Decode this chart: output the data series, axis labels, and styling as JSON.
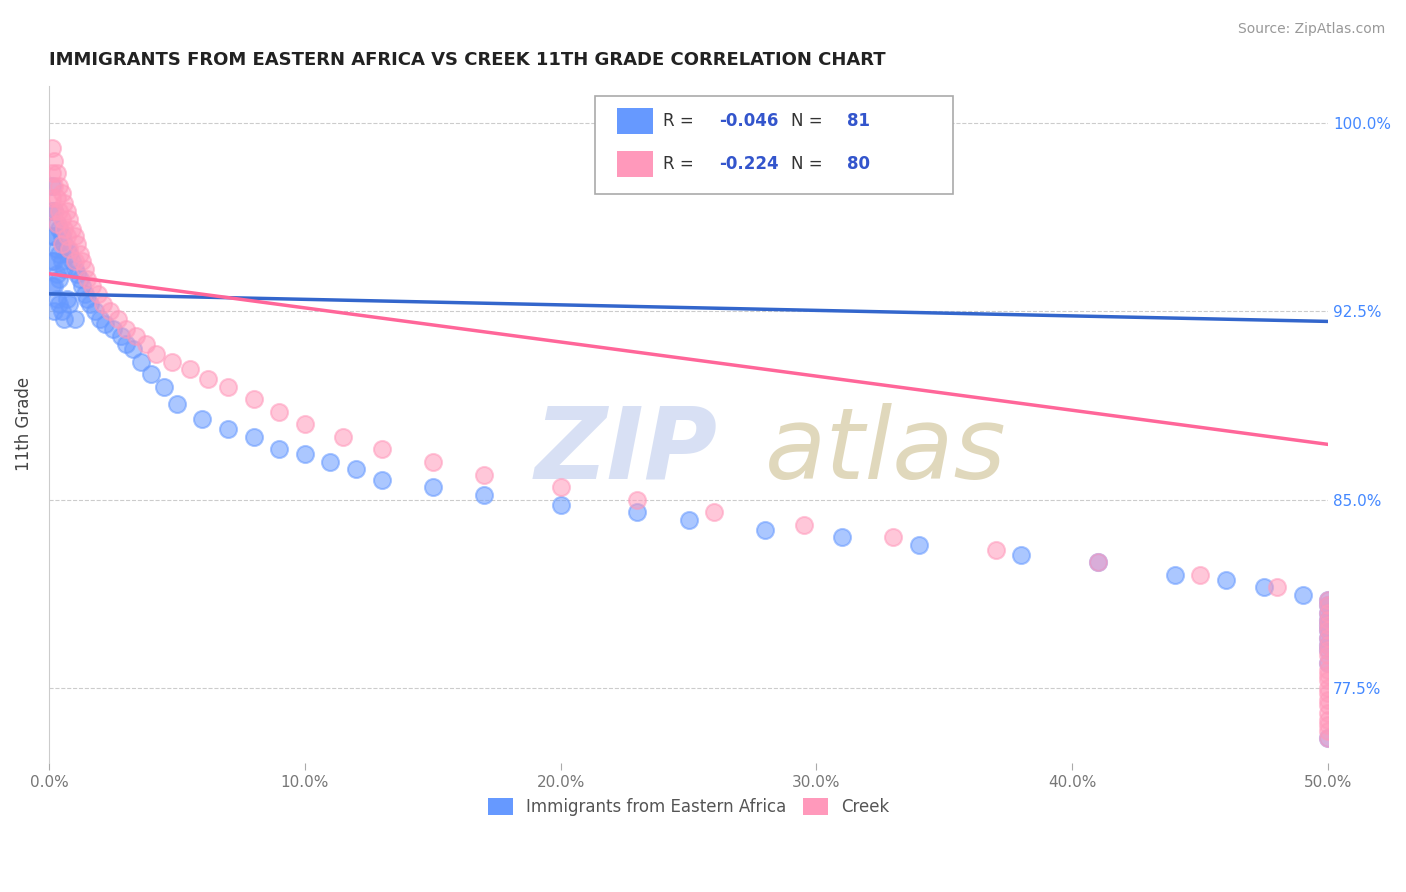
{
  "title": "IMMIGRANTS FROM EASTERN AFRICA VS CREEK 11TH GRADE CORRELATION CHART",
  "source_text": "Source: ZipAtlas.com",
  "ylabel": "11th Grade",
  "xlim": [
    0.0,
    0.5
  ],
  "ylim": [
    0.745,
    1.015
  ],
  "xtick_labels": [
    "0.0%",
    "",
    "",
    "",
    "",
    "10.0%",
    "",
    "",
    "",
    "",
    "20.0%",
    "",
    "",
    "",
    "",
    "30.0%",
    "",
    "",
    "",
    "",
    "40.0%",
    "",
    "",
    "",
    "",
    "50.0%"
  ],
  "xtick_values": [
    0.0,
    0.02,
    0.04,
    0.06,
    0.08,
    0.1,
    0.12,
    0.14,
    0.16,
    0.18,
    0.2,
    0.22,
    0.24,
    0.26,
    0.28,
    0.3,
    0.32,
    0.34,
    0.36,
    0.38,
    0.4,
    0.42,
    0.44,
    0.46,
    0.48,
    0.5
  ],
  "ytick_labels": [
    "77.5%",
    "85.0%",
    "92.5%",
    "100.0%"
  ],
  "ytick_values": [
    0.775,
    0.85,
    0.925,
    1.0
  ],
  "blue_color": "#6699ff",
  "pink_color": "#ff99bb",
  "blue_line_color": "#3366cc",
  "pink_line_color": "#ff6699",
  "blue_R": -0.046,
  "blue_N": 81,
  "pink_R": -0.224,
  "pink_N": 80,
  "blue_trend": [
    0.0,
    0.5,
    0.932,
    0.921
  ],
  "pink_trend": [
    0.0,
    0.5,
    0.94,
    0.872
  ],
  "blue_scatter_x": [
    0.001,
    0.001,
    0.001,
    0.001,
    0.001,
    0.002,
    0.002,
    0.002,
    0.002,
    0.002,
    0.003,
    0.003,
    0.003,
    0.003,
    0.004,
    0.004,
    0.004,
    0.004,
    0.005,
    0.005,
    0.005,
    0.006,
    0.006,
    0.006,
    0.007,
    0.007,
    0.008,
    0.008,
    0.009,
    0.01,
    0.01,
    0.011,
    0.012,
    0.013,
    0.014,
    0.015,
    0.016,
    0.018,
    0.02,
    0.022,
    0.025,
    0.028,
    0.03,
    0.033,
    0.036,
    0.04,
    0.045,
    0.05,
    0.06,
    0.07,
    0.08,
    0.09,
    0.1,
    0.11,
    0.12,
    0.13,
    0.15,
    0.17,
    0.2,
    0.23,
    0.25,
    0.28,
    0.31,
    0.34,
    0.38,
    0.41,
    0.44,
    0.46,
    0.475,
    0.49,
    0.5,
    0.5,
    0.5,
    0.5,
    0.5,
    0.5,
    0.5,
    0.5,
    0.5,
    0.5,
    0.5
  ],
  "blue_scatter_y": [
    0.975,
    0.965,
    0.955,
    0.945,
    0.935,
    0.965,
    0.955,
    0.945,
    0.935,
    0.925,
    0.96,
    0.95,
    0.94,
    0.93,
    0.958,
    0.948,
    0.938,
    0.928,
    0.955,
    0.945,
    0.925,
    0.952,
    0.942,
    0.922,
    0.95,
    0.93,
    0.948,
    0.928,
    0.945,
    0.942,
    0.922,
    0.94,
    0.938,
    0.935,
    0.932,
    0.93,
    0.928,
    0.925,
    0.922,
    0.92,
    0.918,
    0.915,
    0.912,
    0.91,
    0.905,
    0.9,
    0.895,
    0.888,
    0.882,
    0.878,
    0.875,
    0.87,
    0.868,
    0.865,
    0.862,
    0.858,
    0.855,
    0.852,
    0.848,
    0.845,
    0.842,
    0.838,
    0.835,
    0.832,
    0.828,
    0.825,
    0.82,
    0.818,
    0.815,
    0.812,
    0.81,
    0.808,
    0.805,
    0.802,
    0.8,
    0.798,
    0.795,
    0.792,
    0.79,
    0.785,
    0.755
  ],
  "pink_scatter_x": [
    0.001,
    0.001,
    0.001,
    0.002,
    0.002,
    0.002,
    0.003,
    0.003,
    0.003,
    0.004,
    0.004,
    0.005,
    0.005,
    0.005,
    0.006,
    0.006,
    0.007,
    0.007,
    0.008,
    0.008,
    0.009,
    0.01,
    0.01,
    0.011,
    0.012,
    0.013,
    0.014,
    0.015,
    0.017,
    0.019,
    0.021,
    0.024,
    0.027,
    0.03,
    0.034,
    0.038,
    0.042,
    0.048,
    0.055,
    0.062,
    0.07,
    0.08,
    0.09,
    0.1,
    0.115,
    0.13,
    0.15,
    0.17,
    0.2,
    0.23,
    0.26,
    0.295,
    0.33,
    0.37,
    0.41,
    0.45,
    0.48,
    0.5,
    0.5,
    0.5,
    0.5,
    0.5,
    0.5,
    0.5,
    0.5,
    0.5,
    0.5,
    0.5,
    0.5,
    0.5,
    0.5,
    0.5,
    0.5,
    0.5,
    0.5,
    0.5,
    0.5,
    0.5,
    0.5,
    0.5
  ],
  "pink_scatter_y": [
    0.99,
    0.98,
    0.97,
    0.985,
    0.975,
    0.965,
    0.98,
    0.97,
    0.96,
    0.975,
    0.965,
    0.972,
    0.962,
    0.952,
    0.968,
    0.958,
    0.965,
    0.955,
    0.962,
    0.95,
    0.958,
    0.955,
    0.945,
    0.952,
    0.948,
    0.945,
    0.942,
    0.938,
    0.935,
    0.932,
    0.928,
    0.925,
    0.922,
    0.918,
    0.915,
    0.912,
    0.908,
    0.905,
    0.902,
    0.898,
    0.895,
    0.89,
    0.885,
    0.88,
    0.875,
    0.87,
    0.865,
    0.86,
    0.855,
    0.85,
    0.845,
    0.84,
    0.835,
    0.83,
    0.825,
    0.82,
    0.815,
    0.81,
    0.808,
    0.805,
    0.802,
    0.8,
    0.798,
    0.795,
    0.792,
    0.79,
    0.788,
    0.785,
    0.782,
    0.78,
    0.778,
    0.775,
    0.773,
    0.77,
    0.768,
    0.765,
    0.762,
    0.76,
    0.758,
    0.755
  ],
  "watermark_zip": "ZIP",
  "watermark_atlas": "atlas",
  "watermark_color": "#d0d8f0",
  "watermark_atlas_color": "#d0c8b0",
  "legend_box_color": "#ffffff",
  "legend_border_color": "#aaaaaa",
  "title_color": "#222222",
  "axis_label_color": "#444444",
  "right_tick_color": "#4488ff",
  "grid_color": "#cccccc",
  "background_color": "#ffffff"
}
